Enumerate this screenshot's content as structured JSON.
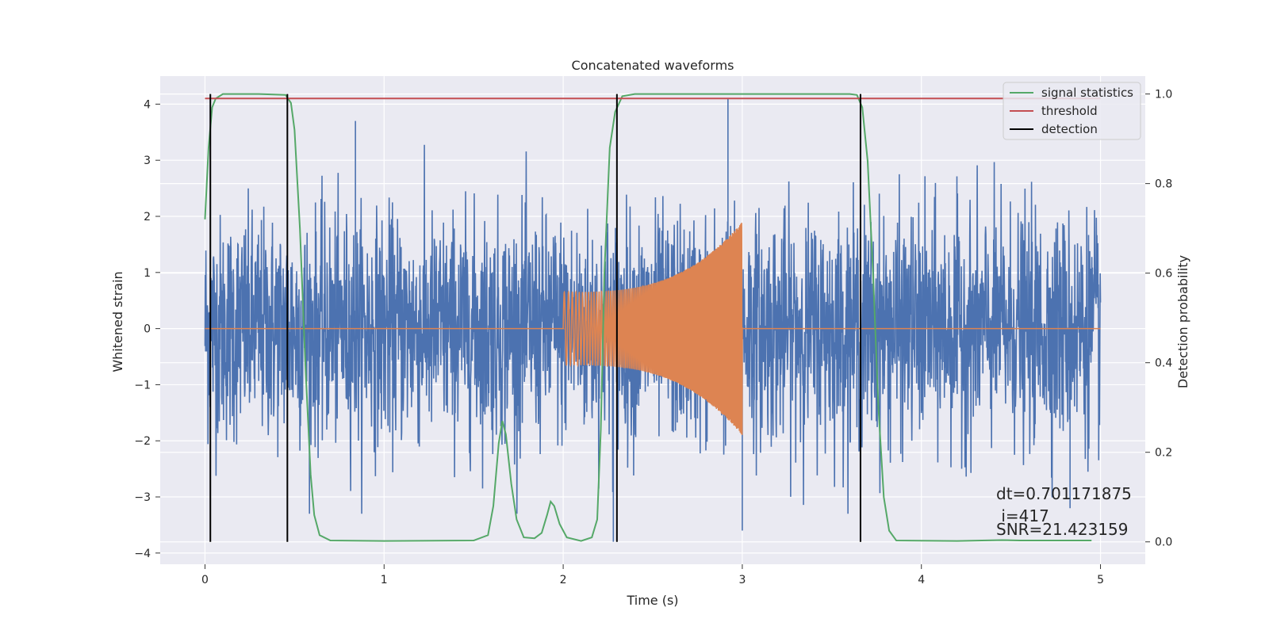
{
  "chart_data": {
    "type": "line",
    "title": "Concatenated waveforms",
    "xlabel": "Time (s)",
    "ylabel": "Whitened strain",
    "y2label": "Detection probability",
    "xlim": [
      -0.25,
      5.25
    ],
    "ylim": [
      -4.2,
      4.5
    ],
    "y2lim": [
      -0.05,
      1.04
    ],
    "xticks": [
      0,
      1,
      2,
      3,
      4,
      5
    ],
    "yticks": [
      -4,
      -3,
      -2,
      -1,
      0,
      1,
      2,
      3,
      4
    ],
    "y2ticks": [
      0.0,
      0.2,
      0.4,
      0.6,
      0.8,
      1.0
    ],
    "xtick_labels": [
      "0",
      "1",
      "2",
      "3",
      "4",
      "5"
    ],
    "ytick_labels": [
      "−4",
      "−3",
      "−2",
      "−1",
      "0",
      "1",
      "2",
      "3",
      "4"
    ],
    "y2tick_labels": [
      "0.0",
      "0.2",
      "0.4",
      "0.6",
      "0.8",
      "1.0"
    ],
    "grid": true,
    "legend_position": "upper right",
    "legend": [
      {
        "label": "signal statistics",
        "color": "#55a868"
      },
      {
        "label": "threshold",
        "color": "#c44e52"
      },
      {
        "label": "detection",
        "color": "#000000"
      }
    ],
    "noise": {
      "color": "#4c72b0",
      "x_range": [
        0,
        5
      ],
      "typical_amplitude": 1.0,
      "peak_points": [
        [
          0.84,
          3.7
        ],
        [
          2.92,
          4.1
        ],
        [
          2.28,
          -3.8
        ],
        [
          3.0,
          -3.6
        ],
        [
          4.83,
          -3.2
        ]
      ]
    },
    "injected_signal": {
      "color": "#dd8452",
      "baseline": 0,
      "chirp_start": 2.0,
      "chirp_end": 3.0,
      "amplitude_start": 0.65,
      "amplitude_end": 1.9
    },
    "signal_statistics": {
      "color": "#55a868",
      "points": [
        [
          0.0,
          0.72
        ],
        [
          0.02,
          0.88
        ],
        [
          0.04,
          0.97
        ],
        [
          0.06,
          0.99
        ],
        [
          0.1,
          1.0
        ],
        [
          0.3,
          1.0
        ],
        [
          0.45,
          0.998
        ],
        [
          0.48,
          0.98
        ],
        [
          0.5,
          0.92
        ],
        [
          0.53,
          0.7
        ],
        [
          0.56,
          0.4
        ],
        [
          0.59,
          0.15
        ],
        [
          0.61,
          0.06
        ],
        [
          0.64,
          0.015
        ],
        [
          0.7,
          0.003
        ],
        [
          1.0,
          0.002
        ],
        [
          1.5,
          0.003
        ],
        [
          1.58,
          0.015
        ],
        [
          1.61,
          0.08
        ],
        [
          1.64,
          0.22
        ],
        [
          1.66,
          0.27
        ],
        [
          1.68,
          0.24
        ],
        [
          1.71,
          0.13
        ],
        [
          1.74,
          0.05
        ],
        [
          1.78,
          0.01
        ],
        [
          1.84,
          0.008
        ],
        [
          1.88,
          0.02
        ],
        [
          1.91,
          0.06
        ],
        [
          1.93,
          0.09
        ],
        [
          1.95,
          0.08
        ],
        [
          1.98,
          0.04
        ],
        [
          2.02,
          0.01
        ],
        [
          2.1,
          0.002
        ],
        [
          2.16,
          0.01
        ],
        [
          2.19,
          0.05
        ],
        [
          2.21,
          0.25
        ],
        [
          2.23,
          0.6
        ],
        [
          2.26,
          0.88
        ],
        [
          2.29,
          0.96
        ],
        [
          2.33,
          0.995
        ],
        [
          2.4,
          1.0
        ],
        [
          3.6,
          1.0
        ],
        [
          3.64,
          0.998
        ],
        [
          3.67,
          0.97
        ],
        [
          3.7,
          0.85
        ],
        [
          3.73,
          0.6
        ],
        [
          3.76,
          0.3
        ],
        [
          3.79,
          0.1
        ],
        [
          3.82,
          0.025
        ],
        [
          3.86,
          0.003
        ],
        [
          4.2,
          0.002
        ],
        [
          4.45,
          0.004
        ],
        [
          4.55,
          0.003
        ],
        [
          4.95,
          0.003
        ]
      ]
    },
    "threshold": {
      "color": "#c44e52",
      "value": 0.99,
      "x_range": [
        0,
        5
      ]
    },
    "detections": [
      0.03,
      0.46,
      2.3,
      3.66
    ],
    "annotations": [
      "dt=0.701171875",
      " i=417",
      "SNR=21.423159"
    ]
  }
}
